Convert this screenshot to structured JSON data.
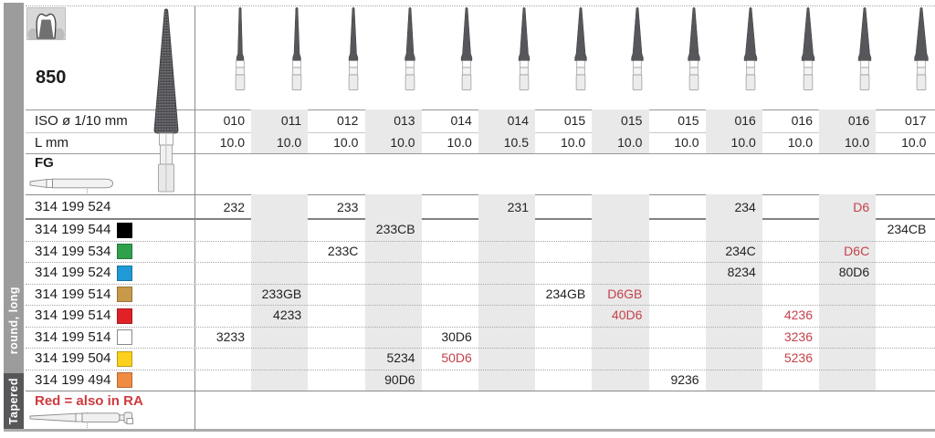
{
  "header": {
    "shape_number": "850",
    "iso_label": "ISO ø 1/10 mm",
    "l_label": "L mm",
    "fg_label": "FG"
  },
  "side": {
    "group_label": "round, long",
    "family_label": "Tapered"
  },
  "columns": [
    {
      "iso": "010",
      "l": "10.0"
    },
    {
      "iso": "011",
      "l": "10.0"
    },
    {
      "iso": "012",
      "l": "10.0"
    },
    {
      "iso": "013",
      "l": "10.0"
    },
    {
      "iso": "014",
      "l": "10.0"
    },
    {
      "iso": "014",
      "l": "10.5"
    },
    {
      "iso": "015",
      "l": "10.0"
    },
    {
      "iso": "015",
      "l": "10.0"
    },
    {
      "iso": "015",
      "l": "10.0"
    },
    {
      "iso": "016",
      "l": "10.0"
    },
    {
      "iso": "016",
      "l": "10.0"
    },
    {
      "iso": "016",
      "l": "10.0"
    },
    {
      "iso": "017",
      "l": "10.0"
    }
  ],
  "rows": [
    {
      "order": "314 199 524",
      "chip": null,
      "cells": [
        {
          "col": 1,
          "text": "232"
        },
        {
          "col": 3,
          "text": "233"
        },
        {
          "col": 6,
          "text": "231"
        },
        {
          "col": 10,
          "text": "234"
        },
        {
          "col": 12,
          "text": "D6",
          "red": true
        }
      ]
    },
    {
      "order": "314 199 544",
      "chip": "#000000",
      "cells": [
        {
          "col": 4,
          "text": "233CB"
        },
        {
          "col": 13,
          "text": "234CB"
        }
      ]
    },
    {
      "order": "314 199 534",
      "chip": "#2fa14c",
      "cells": [
        {
          "col": 3,
          "text": "233C"
        },
        {
          "col": 10,
          "text": "234C"
        },
        {
          "col": 12,
          "text": "D6C",
          "red": true
        }
      ]
    },
    {
      "order": "314 199 524",
      "chip": "#1f9ad6",
      "cells": [
        {
          "col": 10,
          "text": "8234"
        },
        {
          "col": 12,
          "text": "80D6"
        }
      ]
    },
    {
      "order": "314 199 514",
      "chip": "#c79a4a",
      "cells": [
        {
          "col": 2,
          "text": "233GB"
        },
        {
          "col": 7,
          "text": "234GB"
        },
        {
          "col": 8,
          "text": "D6GB",
          "red": true
        }
      ]
    },
    {
      "order": "314 199 514",
      "chip": "#e02128",
      "cells": [
        {
          "col": 2,
          "text": "4233"
        },
        {
          "col": 8,
          "text": "40D6",
          "red": true
        },
        {
          "col": 11,
          "text": "4236",
          "red": true
        }
      ]
    },
    {
      "order": "314 199 514",
      "chip": "#ffffff",
      "cells": [
        {
          "col": 1,
          "text": "3233"
        },
        {
          "col": 5,
          "text": "30D6"
        },
        {
          "col": 11,
          "text": "3236",
          "red": true
        }
      ]
    },
    {
      "order": "314 199 504",
      "chip": "#fcd11c",
      "cells": [
        {
          "col": 4,
          "text": "5234"
        },
        {
          "col": 5,
          "text": "50D6",
          "red": true
        },
        {
          "col": 11,
          "text": "5236",
          "red": true
        }
      ]
    },
    {
      "order": "314 199 494",
      "chip": "#f08c42",
      "cells": [
        {
          "col": 4,
          "text": "90D6"
        },
        {
          "col": 9,
          "text": "9236"
        }
      ]
    }
  ],
  "legend": {
    "text": "Red = also in RA"
  },
  "colors": {
    "accent_red": "#c5414b",
    "legend_red": "#cf3a3f",
    "column_stripe": "#e9e9e9",
    "side_strip": "#9c9c9c",
    "side_strip_dark": "#57575a"
  }
}
